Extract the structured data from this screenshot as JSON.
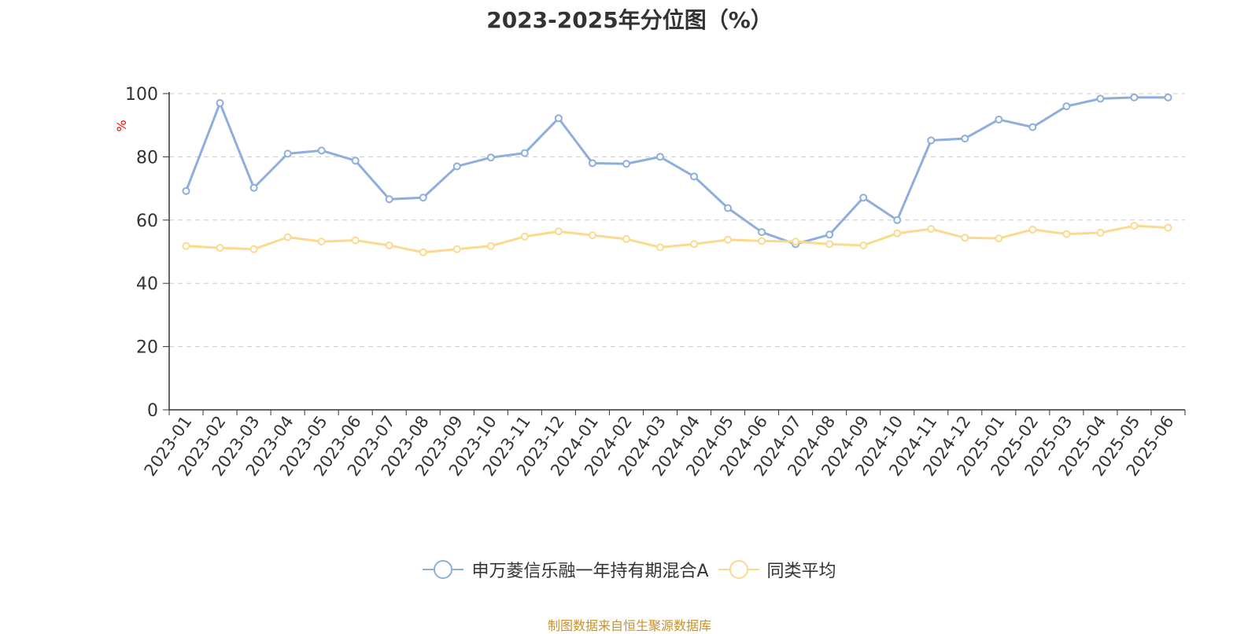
{
  "source_note": "制图数据来自恒生聚源数据库",
  "colors": {
    "series_0": "#8eaedb",
    "series_1": "#fbd98e",
    "ylabel": "#ff0000",
    "grid": "#cccccc",
    "source": "#c8912a"
  },
  "chart_data": {
    "type": "line",
    "title": "2023-2025年分位图（%）",
    "xlabel": "",
    "ylabel": "%",
    "ylim": [
      0,
      100
    ],
    "yticks": [
      0,
      20,
      40,
      60,
      80,
      100
    ],
    "grid": true,
    "legend_position": "bottom-center",
    "categories": [
      "2023-01",
      "2023-02",
      "2023-03",
      "2023-04",
      "2023-05",
      "2023-06",
      "2023-07",
      "2023-08",
      "2023-09",
      "2023-10",
      "2023-11",
      "2023-12",
      "2024-01",
      "2024-02",
      "2024-03",
      "2024-04",
      "2024-05",
      "2024-06",
      "2024-07",
      "2024-08",
      "2024-09",
      "2024-10",
      "2024-11",
      "2024-12",
      "2025-01",
      "2025-02",
      "2025-03",
      "2025-04",
      "2025-05",
      "2025-06"
    ],
    "series": [
      {
        "name": "申万菱信乐融一年持有期混合A",
        "values": [
          69.2,
          97.0,
          70.2,
          81.0,
          82.0,
          78.8,
          66.6,
          67.1,
          77.0,
          79.8,
          81.2,
          92.2,
          78.0,
          77.8,
          80.0,
          73.8,
          63.8,
          56.2,
          52.4,
          55.4,
          67.1,
          60.0,
          85.2,
          85.8,
          91.8,
          89.4,
          96.0,
          98.4,
          98.8,
          98.8
        ]
      },
      {
        "name": "同类平均",
        "values": [
          51.8,
          51.2,
          50.8,
          54.6,
          53.2,
          53.6,
          52.0,
          49.8,
          50.8,
          51.8,
          54.8,
          56.4,
          55.2,
          54.0,
          51.4,
          52.4,
          53.8,
          53.4,
          53.2,
          52.4,
          52.0,
          55.8,
          57.2,
          54.4,
          54.2,
          57.0,
          55.6,
          56.0,
          58.2,
          57.6
        ]
      }
    ]
  }
}
